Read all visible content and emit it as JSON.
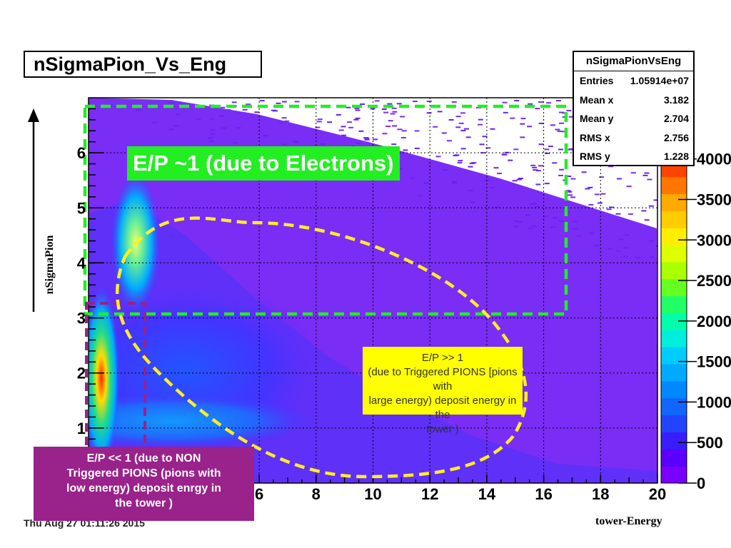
{
  "chart_data": {
    "type": "heatmap",
    "title": "nSigmaPion_Vs_Eng",
    "xlabel": "tower-Energy",
    "ylabel": "nSigmaPion",
    "xlim": [
      0,
      20
    ],
    "ylim": [
      0,
      7
    ],
    "x_ticks": [
      "6",
      "8",
      "10",
      "12",
      "14",
      "16",
      "18",
      "20"
    ],
    "y_ticks": [
      "1",
      "2",
      "3",
      "4",
      "5",
      "6"
    ],
    "colorbar_ticks": [
      "0",
      "500",
      "1000",
      "1500",
      "2000",
      "2500",
      "3000",
      "3500",
      "4000"
    ],
    "grid": true,
    "stats": {
      "name": "nSigmaPionVsEng",
      "rows": [
        {
          "key": "Entries",
          "value": "1.05914e+07"
        },
        {
          "key": "Mean x",
          "value": "3.182"
        },
        {
          "key": "Mean y",
          "value": "2.704"
        },
        {
          "key": "RMS x",
          "value": "2.756"
        },
        {
          "key": "RMS y",
          "value": "1.228"
        }
      ]
    },
    "annotations": {
      "electrons": "E/P ~1 (due to Electrons)",
      "triggered_lines": [
        "E/P >> 1",
        "(due to Triggered PIONS [pions with",
        "large energy) deposit energy in the",
        "tower )"
      ],
      "non_triggered_lines": [
        "E/P << 1  (due to NON",
        "Triggered PIONS (pions with",
        "low energy) deposit enrgy in",
        "the tower )"
      ]
    }
  },
  "footer": {
    "date": "Thu Aug 27 01:11:26 2015"
  },
  "colors": {
    "background_fill": "#7a2df5",
    "electron_box": "#22ee22",
    "ellipse": "#ffee22",
    "purple_note": "#99228b",
    "yellow_note": "#ffff00"
  }
}
